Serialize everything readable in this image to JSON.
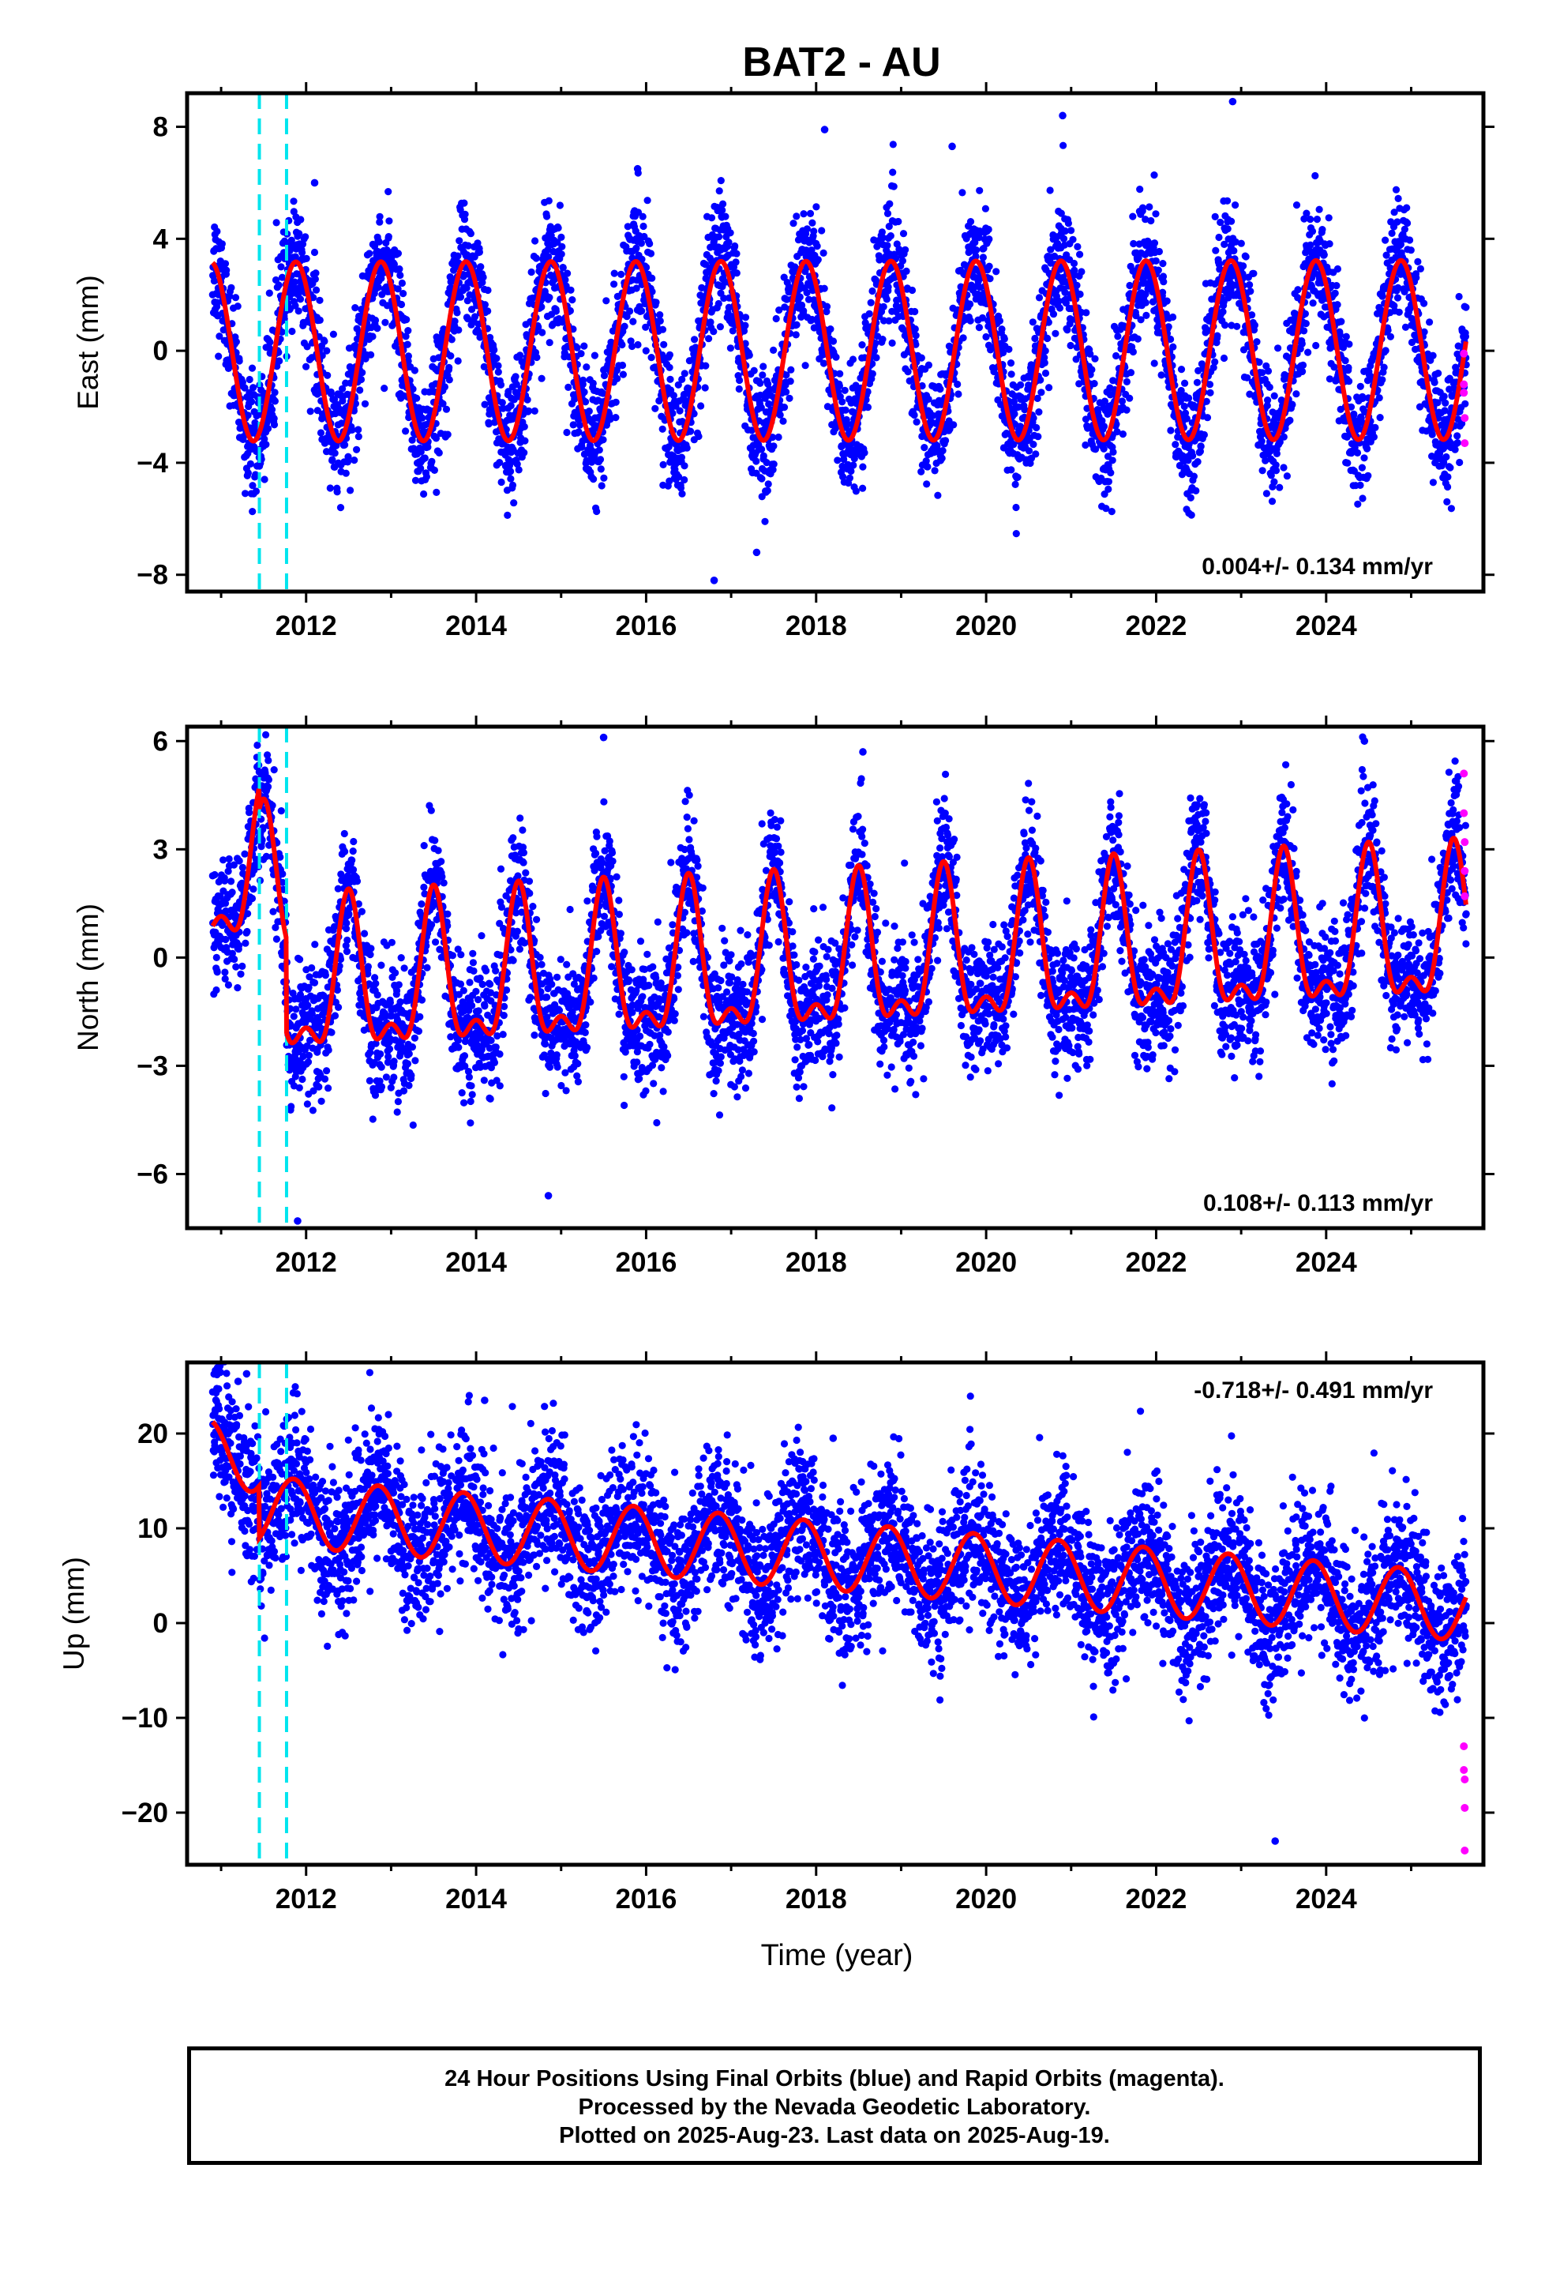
{
  "title": "BAT2 - AU",
  "x_axis_label": "Time (year)",
  "footer": [
    "24 Hour Positions Using Final Orbits (blue) and Rapid Orbits (magenta).",
    "Processed by the Nevada Geodetic Laboratory.",
    "Plotted on 2025-Aug-23. Last data on 2025-Aug-19."
  ],
  "colors": {
    "final_orbits": "#0000ff",
    "rapid_orbits": "#ff00ff",
    "model_fit": "#ff0000",
    "equipment_change_lines": "#00e5ee"
  },
  "chart_data": [
    {
      "type": "scatter",
      "ylabel": "East (mm)",
      "xlim": [
        2010.6,
        2025.85
      ],
      "ylim": [
        -8.6,
        9.2
      ],
      "x_ticks": [
        2012,
        2014,
        2016,
        2018,
        2020,
        2022,
        2024
      ],
      "x_tick_labels": [
        "2012",
        "2014",
        "2016",
        "2018",
        "2020",
        "2022",
        "2024"
      ],
      "y_ticks": [
        -8,
        -4,
        0,
        4,
        8
      ],
      "y_tick_labels": [
        "−8",
        "−4",
        "0",
        "4",
        "8"
      ],
      "rate_label": "0.004+/- 0.134 mm/yr",
      "rate_position": "bottom-right",
      "equipment_changes": [
        2011.45,
        2011.77
      ],
      "model": {
        "x_start": 2010.9,
        "x_end": 2025.65,
        "offset": 0.0,
        "trend_per_year": 0.004,
        "annual_amplitude": 3.2,
        "annual_phase_year": 2010.88,
        "semiannual_amplitude": 0.0,
        "steps": []
      },
      "final_orbit_scatter": {
        "noise_sd": 1.1
      },
      "rapid_orbit_points": {
        "x": [
          2025.62,
          2025.62,
          2025.62,
          2025.63,
          2025.63
        ],
        "y": [
          -0.1,
          -1.2,
          -1.5,
          -2.4,
          -3.3
        ]
      },
      "outliers": {
        "x": [
          2012.1,
          2015.9,
          2018.1,
          2019.6,
          2020.9,
          2022.9,
          2016.8,
          2017.3
        ],
        "y": [
          6.0,
          6.5,
          7.9,
          7.3,
          8.4,
          8.9,
          -8.2,
          -7.2
        ]
      }
    },
    {
      "type": "scatter",
      "ylabel": "North (mm)",
      "xlim": [
        2010.6,
        2025.85
      ],
      "ylim": [
        -7.5,
        6.4
      ],
      "x_ticks": [
        2012,
        2014,
        2016,
        2018,
        2020,
        2022,
        2024
      ],
      "x_tick_labels": [
        "2012",
        "2014",
        "2016",
        "2018",
        "2020",
        "2022",
        "2024"
      ],
      "y_ticks": [
        -6,
        -3,
        0,
        3,
        6
      ],
      "y_tick_labels": [
        "−6",
        "−3",
        "0",
        "3",
        "6"
      ],
      "rate_label": "0.108+/- 0.113 mm/yr",
      "rate_position": "bottom-right",
      "equipment_changes": [
        2011.45,
        2011.77
      ],
      "model": {
        "x_start": 2010.9,
        "x_end": 2025.65,
        "offset": 0.0,
        "trend_per_year": 0.108,
        "annual_amplitude": 1.9,
        "annual_phase_year": 2011.5,
        "semiannual_amplitude": 0.9,
        "steps": [
          [
            2010.9,
            2.9
          ],
          [
            2011.45,
            -0.6
          ],
          [
            2011.77,
            -2.6
          ]
        ]
      },
      "final_orbit_scatter": {
        "noise_sd": 0.9
      },
      "rapid_orbit_points": {
        "x": [
          2025.62,
          2025.62,
          2025.63,
          2025.63,
          2025.63
        ],
        "y": [
          5.1,
          4.0,
          3.2,
          2.4,
          1.7
        ]
      },
      "outliers": {
        "x": [
          2011.9,
          2014.85,
          2015.5,
          2018.55,
          2024.45
        ],
        "y": [
          -7.3,
          -6.6,
          6.1,
          5.7,
          6.0
        ]
      }
    },
    {
      "type": "scatter",
      "ylabel": "Up (mm)",
      "xlabel": "Time (year)",
      "xlim": [
        2010.6,
        2025.85
      ],
      "ylim": [
        -25.5,
        27.5
      ],
      "x_ticks": [
        2012,
        2014,
        2016,
        2018,
        2020,
        2022,
        2024
      ],
      "x_tick_labels": [
        "2012",
        "2014",
        "2016",
        "2018",
        "2020",
        "2022",
        "2024"
      ],
      "y_ticks": [
        -20,
        -10,
        0,
        10,
        20
      ],
      "y_tick_labels": [
        "−20",
        "−10",
        "0",
        "10",
        "20"
      ],
      "rate_label": "-0.718+/- 0.491 mm/yr",
      "rate_position": "top-right",
      "equipment_changes": [
        2011.45,
        2011.77
      ],
      "model": {
        "x_start": 2010.9,
        "x_end": 2025.65,
        "offset": 7.2,
        "trend_per_year": -0.718,
        "annual_amplitude": 3.6,
        "annual_phase_year": 2010.85,
        "semiannual_amplitude": 0.0,
        "steps": [
          [
            2010.9,
            5.5
          ],
          [
            2011.45,
            -5.5
          ]
        ]
      },
      "final_orbit_scatter": {
        "noise_sd": 3.8
      },
      "rapid_orbit_points": {
        "x": [
          2025.62,
          2025.62,
          2025.63,
          2025.63,
          2025.63
        ],
        "y": [
          -13.0,
          -15.5,
          -16.5,
          -19.5,
          -24.0
        ]
      },
      "outliers": {
        "x": [
          2011.2,
          2011.3,
          2014.1,
          2018.2,
          2023.4
        ],
        "y": [
          25.5,
          26.3,
          23.5,
          19.5,
          -23.0
        ]
      }
    }
  ]
}
